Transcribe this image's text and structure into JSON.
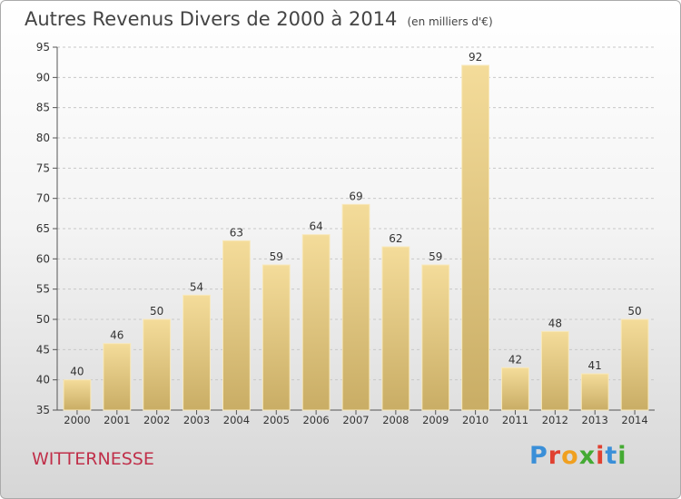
{
  "header": {
    "title": "Autres Revenus Divers de 2000 à 2014",
    "unit": "(en milliers d'€)"
  },
  "footer": {
    "place": "WITTERNESSE",
    "logo_text": "Proxiti",
    "logo_colors": [
      "#3a8fd8",
      "#e04030",
      "#f0a020",
      "#44aa33",
      "#e04030",
      "#3a8fd8",
      "#44aa33"
    ]
  },
  "chart_data": {
    "type": "bar",
    "categories": [
      "2000",
      "2001",
      "2002",
      "2003",
      "2004",
      "2005",
      "2006",
      "2007",
      "2008",
      "2009",
      "2010",
      "2011",
      "2012",
      "2013",
      "2014"
    ],
    "values": [
      40,
      46,
      50,
      54,
      63,
      59,
      64,
      69,
      62,
      59,
      92,
      42,
      48,
      41,
      50
    ],
    "ylim": [
      35,
      95
    ],
    "yticks": [
      35,
      40,
      45,
      50,
      55,
      60,
      65,
      70,
      75,
      80,
      85,
      90,
      95
    ],
    "grid": true,
    "colors": {
      "bar_top": "#f4dc9a",
      "bar_bottom": "#c9ad65",
      "bar_edge": "#f8e9bc",
      "axis": "#555555",
      "text": "#333333"
    }
  }
}
